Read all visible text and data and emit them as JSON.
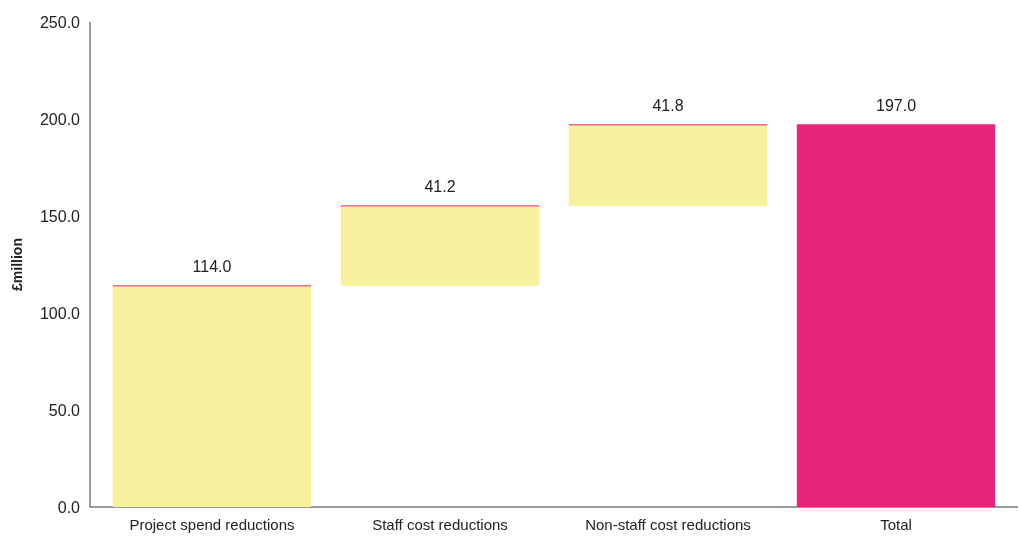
{
  "chart_data": {
    "type": "bar",
    "ylabel": "£million",
    "categories": [
      "Project spend reductions",
      "Staff cost reductions",
      "Non-staff cost reductions",
      "Total"
    ],
    "values": [
      114.0,
      41.2,
      41.8,
      197.0
    ],
    "base": [
      0,
      114.0,
      155.2,
      0
    ],
    "colors": [
      "#f7f09c",
      "#f7f09c",
      "#f7f09c",
      "#e8247a"
    ],
    "value_labels": [
      "114.0",
      "41.2",
      "41.8",
      "197.0"
    ],
    "ylim": [
      0,
      250
    ],
    "yticks": [
      {
        "value": 0,
        "label": "0.0"
      },
      {
        "value": 50,
        "label": "50.0"
      },
      {
        "value": 100,
        "label": "100.0"
      },
      {
        "value": 150,
        "label": "150.0"
      },
      {
        "value": 200,
        "label": "200.0"
      },
      {
        "value": 250,
        "label": "250.0"
      }
    ],
    "grid": false
  }
}
